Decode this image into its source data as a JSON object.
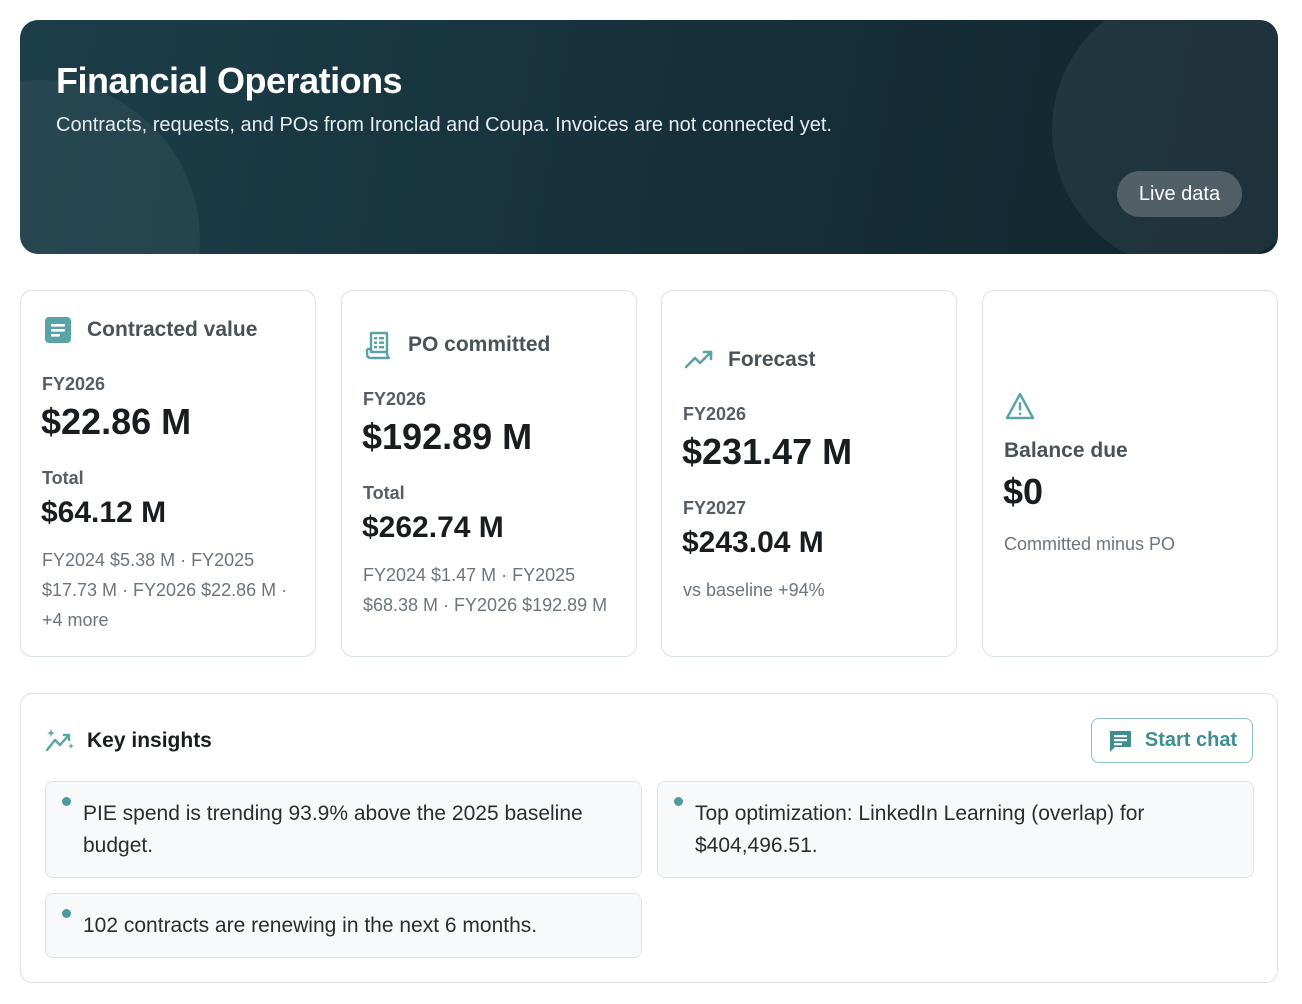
{
  "hero": {
    "title": "Financial Operations",
    "subtitle": "Contracts, requests, and POs from Ironclad and Coupa. Invoices are not connected yet.",
    "badge": "Live data"
  },
  "cards": [
    {
      "title": "Contracted value",
      "icon": "document-icon",
      "primary_label": "FY2026",
      "primary_value": "$22.86 M",
      "secondary_label": "Total",
      "secondary_value": "$64.12 M",
      "note": "FY2024 $5.38 M · FY2025 $17.73 M · FY2026 $22.86 M · +4 more"
    },
    {
      "title": "PO committed",
      "icon": "receipt-icon",
      "primary_label": "FY2026",
      "primary_value": "$192.89 M",
      "secondary_label": "Total",
      "secondary_value": "$262.74 M",
      "note": "FY2024 $1.47 M · FY2025 $68.38 M · FY2026 $192.89 M"
    },
    {
      "title": "Forecast",
      "icon": "trending-up-icon",
      "primary_label": "FY2026",
      "primary_value": "$231.47 M",
      "secondary_label": "FY2027",
      "secondary_value": "$243.04 M",
      "note": "vs baseline +94%"
    },
    {
      "title": "Balance due",
      "icon": "warning-icon",
      "primary_value": "$0",
      "note": "Committed minus PO"
    }
  ],
  "insights": {
    "title": "Key insights",
    "chat_label": "Start chat",
    "items": [
      "PIE spend is trending 93.9% above the 2025 baseline budget.",
      "Top optimization: LinkedIn Learning (overlap) for $404,496.51.",
      "102 contracts are renewing in the next 6 months."
    ]
  },
  "colors": {
    "accent": "#4e9b9d",
    "hero_bg": "#17323c"
  }
}
